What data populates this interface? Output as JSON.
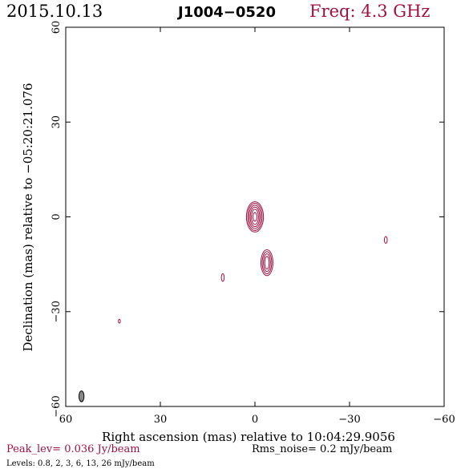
{
  "header": {
    "date": "2015.10.13",
    "source": "J1004−0520",
    "freq": "Freq: 4.3 GHz"
  },
  "footer": {
    "peak": "Peak_lev=  0.036 Jy/beam",
    "rms": "Rms_noise=   0.2 mJy/beam",
    "levels": "Levels: 0.8,   2,   3,   6,  13,  26 mJy/beam"
  },
  "colors": {
    "contour": "#a01040",
    "axis": "#000000"
  },
  "chart_data": {
    "type": "contour",
    "xlabel": "Right ascension (mas) relative to 10:04:29.9056",
    "ylabel": "Declination (mas) relative to −05:20:21.076",
    "xlim": [
      60,
      -60
    ],
    "ylim": [
      -60,
      60
    ],
    "xticks": [
      60,
      30,
      0,
      -30,
      -60
    ],
    "yticks": [
      -60,
      -30,
      0,
      30,
      60
    ],
    "xtick_labels": [
      "60",
      "30",
      "0",
      "−30",
      "−60"
    ],
    "ytick_labels": [
      "−60",
      "−30",
      "0",
      "30",
      "60"
    ],
    "levels_mJy": [
      0.8,
      2,
      3,
      6,
      13,
      26
    ],
    "components": [
      {
        "ra": 0,
        "dec": 0,
        "semi_ra": [
          0.6,
          1.1,
          1.5,
          1.9,
          2.3,
          2.7
        ],
        "semi_dec": [
          1.4,
          2.4,
          3.1,
          3.7,
          4.3,
          4.8
        ]
      },
      {
        "ra": -3.8,
        "dec": -14.5,
        "semi_ra": [
          0.7,
          1.1,
          1.5,
          1.9
        ],
        "semi_dec": [
          2.0,
          2.8,
          3.5,
          4.1
        ]
      },
      {
        "ra": 10.2,
        "dec": -19.2,
        "semi_ra": [
          0.45
        ],
        "semi_dec": [
          1.2
        ]
      },
      {
        "ra": -41.5,
        "dec": -7.3,
        "semi_ra": [
          0.45
        ],
        "semi_dec": [
          1.1
        ]
      },
      {
        "ra": 43.0,
        "dec": -33.0,
        "semi_ra": [
          0.3
        ],
        "semi_dec": [
          0.6
        ]
      }
    ],
    "beam": {
      "ra": 55.0,
      "dec": -56.8,
      "semi_ra": 0.8,
      "semi_dec": 1.7
    },
    "grid": false
  }
}
